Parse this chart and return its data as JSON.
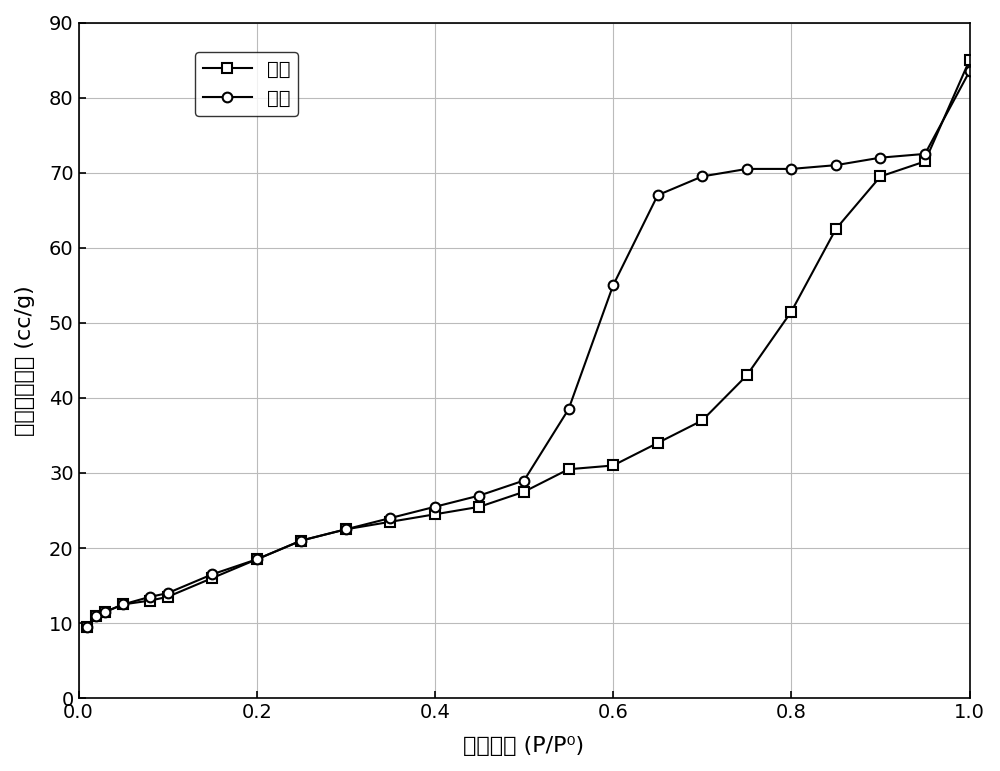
{
  "adsorption_x": [
    0.01,
    0.02,
    0.03,
    0.05,
    0.08,
    0.1,
    0.15,
    0.2,
    0.25,
    0.3,
    0.35,
    0.4,
    0.45,
    0.5,
    0.55,
    0.6,
    0.65,
    0.7,
    0.75,
    0.8,
    0.85,
    0.9,
    0.95,
    1.0
  ],
  "adsorption_y": [
    9.5,
    11.0,
    11.5,
    12.5,
    13.0,
    13.5,
    16.0,
    18.5,
    21.0,
    22.5,
    23.5,
    24.5,
    25.5,
    27.5,
    30.5,
    31.0,
    34.0,
    37.0,
    43.0,
    51.5,
    62.5,
    69.5,
    71.5,
    85.0
  ],
  "desorption_x": [
    0.01,
    0.02,
    0.03,
    0.05,
    0.08,
    0.1,
    0.15,
    0.2,
    0.25,
    0.3,
    0.35,
    0.4,
    0.45,
    0.5,
    0.55,
    0.6,
    0.65,
    0.7,
    0.75,
    0.8,
    0.85,
    0.9,
    0.95,
    1.0
  ],
  "desorption_y": [
    9.5,
    11.0,
    11.5,
    12.5,
    13.5,
    14.0,
    16.5,
    18.5,
    21.0,
    22.5,
    24.0,
    25.5,
    27.0,
    29.0,
    38.5,
    55.0,
    67.0,
    69.5,
    70.5,
    70.5,
    71.0,
    72.0,
    72.5,
    83.5
  ],
  "xlabel": "相对压力 (P/P⁰)",
  "ylabel": "标准吸附容量 (cc/g)",
  "legend_adsorption": "吸附",
  "legend_desorption": "脱附",
  "xlim": [
    0.0,
    1.0
  ],
  "ylim": [
    0,
    90
  ],
  "xticks": [
    0.0,
    0.2,
    0.4,
    0.6,
    0.8,
    1.0
  ],
  "yticks": [
    0,
    10,
    20,
    30,
    40,
    50,
    60,
    70,
    80,
    90
  ],
  "line_color": "#000000",
  "background_color": "#ffffff",
  "grid_color": "#bbbbbb"
}
